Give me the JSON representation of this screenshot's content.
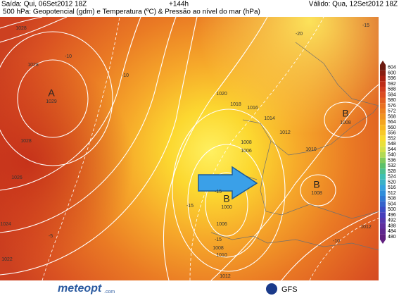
{
  "header": {
    "issued": "Saída: Qui, 06Set2012 18Z",
    "lead": "+144h",
    "valid": "Válido: Qua, 12Set2012 18Z",
    "title": "500 hPa: Geopotencial (gdm) e Temperatura (ºC) & Pressão ao nível do mar (hPa)"
  },
  "map": {
    "labels": [
      "A",
      "1029",
      "1028",
      "1028",
      "1026",
      "1024",
      "1022",
      "1028",
      "-10",
      "-10",
      "-20",
      "-15",
      "1020",
      "1018",
      "1016",
      "1014",
      "1012",
      "1010",
      "1008",
      "1006",
      "B",
      "1008",
      "B",
      "1008",
      "B",
      "1000",
      "-15",
      "-15",
      "-5",
      "1006",
      "-15",
      "1008",
      "1010",
      "-10",
      "1012",
      "1012"
    ]
  },
  "colorbar": {
    "ticks": [
      604,
      600,
      596,
      592,
      588,
      584,
      580,
      576,
      572,
      568,
      564,
      560,
      556,
      552,
      548,
      544,
      540,
      536,
      532,
      528,
      524,
      520,
      516,
      512,
      508,
      504,
      500,
      496,
      492,
      488,
      484,
      480
    ]
  },
  "footer": {
    "brand": "meteopt",
    "brand_suffix": ".com",
    "model": "GFS"
  }
}
